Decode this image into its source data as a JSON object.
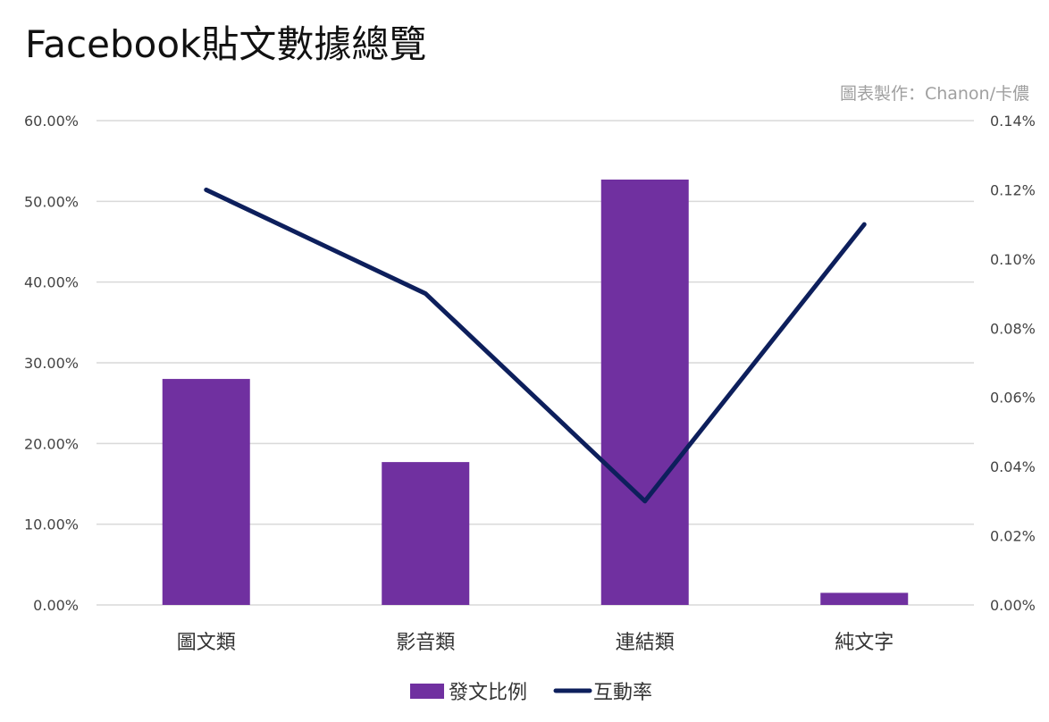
{
  "title": "Facebook貼文數據總覽",
  "credit": "圖表製作：Chanon/卡儂",
  "colors": {
    "bar": "#7030a0",
    "line": "#0d1f5c",
    "grid": "#d9d9d9"
  },
  "chart_data": {
    "type": "bar",
    "categories": [
      "圖文類",
      "影音類",
      "連結類",
      "純文字"
    ],
    "series": [
      {
        "name": "發文比例",
        "type": "bar",
        "axis": "left",
        "values": [
          0.28,
          0.177,
          0.527,
          0.015
        ]
      },
      {
        "name": "互動率",
        "type": "line",
        "axis": "right",
        "values": [
          0.0012,
          0.0009,
          0.0003,
          0.0011
        ]
      }
    ],
    "y_left": {
      "ylim": [
        0,
        0.6
      ],
      "ticks": [
        "0.00%",
        "10.00%",
        "20.00%",
        "30.00%",
        "40.00%",
        "50.00%",
        "60.00%"
      ]
    },
    "y_right": {
      "ylim": [
        0,
        0.0014
      ],
      "ticks": [
        "0.00%",
        "0.02%",
        "0.04%",
        "0.06%",
        "0.08%",
        "0.10%",
        "0.12%",
        "0.14%"
      ]
    },
    "grid": true,
    "legend": "bottom-center"
  }
}
